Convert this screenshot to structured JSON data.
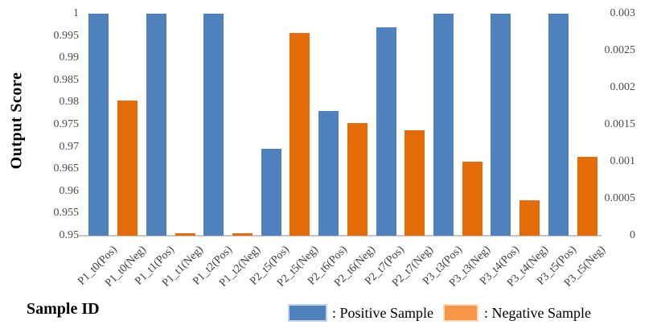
{
  "chart_data": {
    "type": "bar",
    "title": "",
    "xlabel": "Sample ID",
    "ylabel": "Output Score",
    "grid": false,
    "legend": {
      "position": "bottom",
      "entries": [
        {
          "label": ": Positive Sample",
          "color": "#4F81BD"
        },
        {
          "label": ": Negative Sample",
          "color": "#F79646"
        }
      ]
    },
    "left_axis": {
      "min": 0.95,
      "max": 1.0,
      "tick_labels": [
        "1",
        "0.995",
        "0.99",
        "0.985",
        "0.98",
        "0.975",
        "0.97",
        "0.965",
        "0.96",
        "0.955",
        "0.95"
      ]
    },
    "right_axis": {
      "min": 0,
      "max": 0.003,
      "tick_labels": [
        "0.003",
        "0.0025",
        "0.002",
        "0.0015",
        "0.001",
        "0.0005",
        "0"
      ]
    },
    "bars": [
      {
        "label": "P1_t0(Pos)",
        "series": "Positive Sample",
        "axis": "left",
        "value": 1.0
      },
      {
        "label": "P1_t0(Neg)",
        "series": "Negative Sample",
        "axis": "right",
        "value": 0.00183
      },
      {
        "label": "P1_t1(Pos)",
        "series": "Positive Sample",
        "axis": "left",
        "value": 1.0
      },
      {
        "label": "P1_t1(Neg)",
        "series": "Negative Sample",
        "axis": "right",
        "value": 3e-05
      },
      {
        "label": "P1_t2(Pos)",
        "series": "Positive Sample",
        "axis": "left",
        "value": 1.0
      },
      {
        "label": "P1_t2(Neg)",
        "series": "Negative Sample",
        "axis": "right",
        "value": 3e-05
      },
      {
        "label": "P2_t5(Pos)",
        "series": "Positive Sample",
        "axis": "left",
        "value": 0.9695
      },
      {
        "label": "P2_t5(Neg)",
        "series": "Negative Sample",
        "axis": "right",
        "value": 0.00274
      },
      {
        "label": "P2_t6(Pos)",
        "series": "Positive Sample",
        "axis": "left",
        "value": 0.978
      },
      {
        "label": "P2_t6(Neg)",
        "series": "Negative Sample",
        "axis": "right",
        "value": 0.00152
      },
      {
        "label": "P2_t7(Pos)",
        "series": "Positive Sample",
        "axis": "left",
        "value": 0.997
      },
      {
        "label": "P2_t7(Neg)",
        "series": "Negative Sample",
        "axis": "right",
        "value": 0.00142
      },
      {
        "label": "P3_t3(Pos)",
        "series": "Positive Sample",
        "axis": "left",
        "value": 1.0
      },
      {
        "label": "P3_t3(Neg)",
        "series": "Negative Sample",
        "axis": "right",
        "value": 0.001
      },
      {
        "label": "P3_t4(Pos)",
        "series": "Positive Sample",
        "axis": "left",
        "value": 1.0
      },
      {
        "label": "P3_t4(Neg)",
        "series": "Negative Sample",
        "axis": "right",
        "value": 0.00048
      },
      {
        "label": "P3_t5(Pos)",
        "series": "Positive Sample",
        "axis": "left",
        "value": 1.0
      },
      {
        "label": "P3_t5(Neg)",
        "series": "Negative Sample",
        "axis": "right",
        "value": 0.00107
      }
    ],
    "colors": {
      "positive_bar": "#4F81BD",
      "negative_bar": "#E36C09",
      "legend_negative_swatch": "#F79646",
      "axis_line": "#C6C6C6",
      "tick_text": "#4D4D4D"
    }
  }
}
